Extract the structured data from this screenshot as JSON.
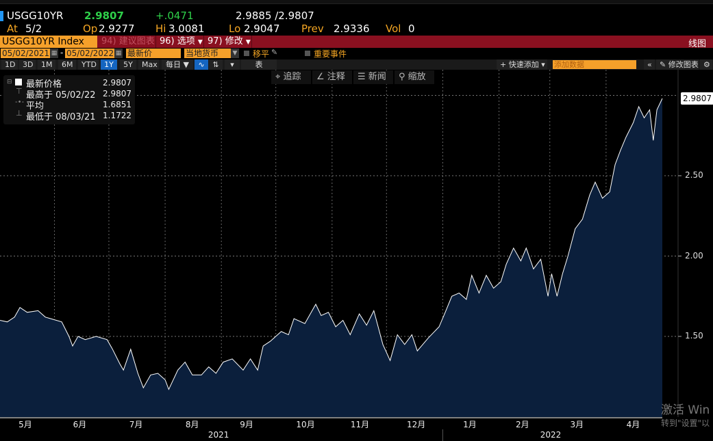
{
  "quote": {
    "ticker": "USGG10YR",
    "last": "2.9807",
    "change": "+.0471",
    "bid_ask": "2.9885 /2.9807",
    "at_label": "At",
    "at": "5/2",
    "open_label": "Op",
    "open": "2.9277",
    "high_label": "Hi",
    "high": "3.0081",
    "low_label": "Lo",
    "low": "2.9047",
    "prev_label": "Prev",
    "prev": "2.9336",
    "vol_label": "Vol",
    "vol": "0"
  },
  "toolbar": {
    "security": "USGG10YR Index",
    "suggest": "94) 建议图表",
    "options": "96) 选项",
    "modify": "97) 修改",
    "chart_type": "线图"
  },
  "fields": {
    "start_date": "05/02/2021",
    "end_date": "05/02/2022",
    "price_field": "最新价",
    "currency": "当地货币",
    "shift_label": "移平",
    "events_label": "重要事件"
  },
  "periods": [
    "1D",
    "3D",
    "1M",
    "6M",
    "YTD",
    "1Y",
    "5Y",
    "Max"
  ],
  "selected_period": "1Y",
  "frequency": "每日 ▼",
  "table_label": "表",
  "quick_add": "+ 快速添加",
  "add_data_placeholder": "添加数据",
  "edit_chart": "修改图表",
  "chart_tools": [
    "追踪",
    "注释",
    "新闻",
    "缩放"
  ],
  "legend": {
    "last_label": "最新价格",
    "last": "2.9807",
    "high_label": "最高于 05/02/22",
    "high": "2.9807",
    "avg_label": "平均",
    "avg": "1.6851",
    "low_label": "最低于 08/03/21",
    "low": "1.1722"
  },
  "watermark": {
    "line1": "激活 Win",
    "line2": "转到\"设置\"以"
  },
  "colors": {
    "fill": "#0b1f3c",
    "line": "#ffffff",
    "accent": "#f5a623",
    "bar": "#8a1020",
    "up": "#2fd04a"
  },
  "chart_data": {
    "type": "area",
    "y_ticks": [
      "1.50",
      "2.00",
      "2.50"
    ],
    "ylim": [
      1.0,
      3.0
    ],
    "last_value_label": "2.9807",
    "x_month_labels": [
      "5月",
      "6月",
      "7月",
      "8月",
      "9月",
      "10月",
      "11月",
      "12月",
      "1月",
      "2月",
      "3月",
      "4月"
    ],
    "x_year_labels": [
      "2021",
      "2022"
    ],
    "xlim": [
      "2021-05-02",
      "2022-05-02"
    ],
    "grid": true,
    "points": [
      [
        "2021-05-02",
        1.6
      ],
      [
        "2021-05-06",
        1.59
      ],
      [
        "2021-05-10",
        1.62
      ],
      [
        "2021-05-13",
        1.68
      ],
      [
        "2021-05-17",
        1.65
      ],
      [
        "2021-05-23",
        1.66
      ],
      [
        "2021-05-27",
        1.62
      ],
      [
        "2021-05-30",
        1.61
      ],
      [
        "2021-06-05",
        1.59
      ],
      [
        "2021-06-09",
        1.5
      ],
      [
        "2021-06-11",
        1.44
      ],
      [
        "2021-06-14",
        1.5
      ],
      [
        "2021-06-18",
        1.48
      ],
      [
        "2021-06-24",
        1.5
      ],
      [
        "2021-06-30",
        1.48
      ],
      [
        "2021-07-03",
        1.42
      ],
      [
        "2021-07-07",
        1.33
      ],
      [
        "2021-07-09",
        1.29
      ],
      [
        "2021-07-13",
        1.42
      ],
      [
        "2021-07-17",
        1.27
      ],
      [
        "2021-07-20",
        1.18
      ],
      [
        "2021-07-24",
        1.26
      ],
      [
        "2021-07-28",
        1.27
      ],
      [
        "2021-08-01",
        1.23
      ],
      [
        "2021-08-03",
        1.17
      ],
      [
        "2021-08-08",
        1.29
      ],
      [
        "2021-08-12",
        1.34
      ],
      [
        "2021-08-16",
        1.26
      ],
      [
        "2021-08-21",
        1.26
      ],
      [
        "2021-08-25",
        1.31
      ],
      [
        "2021-08-29",
        1.27
      ],
      [
        "2021-09-02",
        1.34
      ],
      [
        "2021-09-07",
        1.36
      ],
      [
        "2021-09-13",
        1.29
      ],
      [
        "2021-09-17",
        1.36
      ],
      [
        "2021-09-21",
        1.29
      ],
      [
        "2021-09-24",
        1.44
      ],
      [
        "2021-09-28",
        1.47
      ],
      [
        "2021-10-04",
        1.53
      ],
      [
        "2021-10-08",
        1.51
      ],
      [
        "2021-10-11",
        1.61
      ],
      [
        "2021-10-17",
        1.58
      ],
      [
        "2021-10-23",
        1.7
      ],
      [
        "2021-10-26",
        1.63
      ],
      [
        "2021-10-30",
        1.65
      ],
      [
        "2021-11-03",
        1.56
      ],
      [
        "2021-11-07",
        1.6
      ],
      [
        "2021-11-11",
        1.51
      ],
      [
        "2021-11-16",
        1.64
      ],
      [
        "2021-11-20",
        1.57
      ],
      [
        "2021-11-24",
        1.66
      ],
      [
        "2021-11-29",
        1.45
      ],
      [
        "2021-12-03",
        1.35
      ],
      [
        "2021-12-07",
        1.51
      ],
      [
        "2021-12-11",
        1.45
      ],
      [
        "2021-12-15",
        1.51
      ],
      [
        "2021-12-18",
        1.41
      ],
      [
        "2021-12-24",
        1.49
      ],
      [
        "2021-12-30",
        1.56
      ],
      [
        "2022-01-02",
        1.64
      ],
      [
        "2022-01-06",
        1.75
      ],
      [
        "2022-01-10",
        1.77
      ],
      [
        "2022-01-14",
        1.73
      ],
      [
        "2022-01-17",
        1.88
      ],
      [
        "2022-01-21",
        1.77
      ],
      [
        "2022-01-25",
        1.88
      ],
      [
        "2022-01-29",
        1.8
      ],
      [
        "2022-02-02",
        1.84
      ],
      [
        "2022-02-05",
        1.95
      ],
      [
        "2022-02-09",
        2.05
      ],
      [
        "2022-02-13",
        1.97
      ],
      [
        "2022-02-16",
        2.05
      ],
      [
        "2022-02-20",
        1.92
      ],
      [
        "2022-02-24",
        1.98
      ],
      [
        "2022-02-28",
        1.75
      ],
      [
        "2022-03-02",
        1.89
      ],
      [
        "2022-03-05",
        1.75
      ],
      [
        "2022-03-08",
        1.89
      ],
      [
        "2022-03-11",
        2.0
      ],
      [
        "2022-03-15",
        2.17
      ],
      [
        "2022-03-19",
        2.23
      ],
      [
        "2022-03-23",
        2.38
      ],
      [
        "2022-03-26",
        2.46
      ],
      [
        "2022-03-30",
        2.36
      ],
      [
        "2022-04-03",
        2.4
      ],
      [
        "2022-04-06",
        2.57
      ],
      [
        "2022-04-09",
        2.66
      ],
      [
        "2022-04-12",
        2.74
      ],
      [
        "2022-04-16",
        2.83
      ],
      [
        "2022-04-19",
        2.93
      ],
      [
        "2022-04-22",
        2.86
      ],
      [
        "2022-04-25",
        2.91
      ],
      [
        "2022-04-27",
        2.72
      ],
      [
        "2022-04-29",
        2.91
      ],
      [
        "2022-05-02",
        2.9807
      ]
    ]
  }
}
